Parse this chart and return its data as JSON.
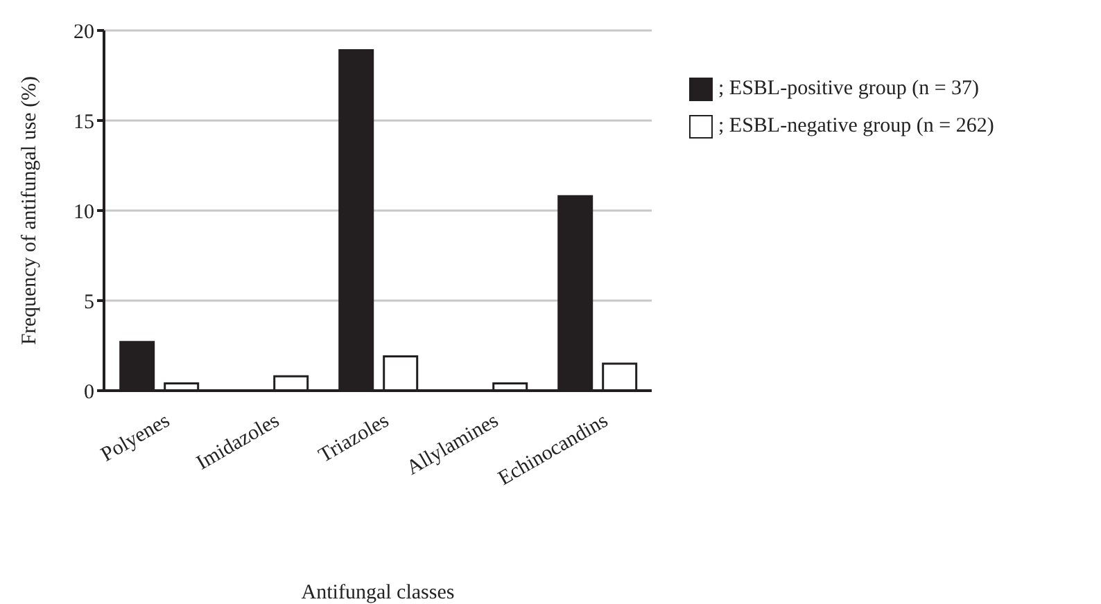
{
  "chart_data": {
    "type": "bar",
    "xlabel": "Antifungal classes",
    "ylabel": "Frequency of antifungal use (%)",
    "categories": [
      "Polyenes",
      "Imidazoles",
      "Triazoles",
      "Allylamines",
      "Echinocandins"
    ],
    "series": [
      {
        "name": "; ESBL-positive group (n = 37)",
        "color": "#231f20",
        "values": [
          2.7,
          0,
          18.9,
          0,
          10.8
        ]
      },
      {
        "name": "; ESBL-negative group (n = 262)",
        "color": "#ffffff",
        "values": [
          0.4,
          0.8,
          1.9,
          0.4,
          1.5
        ]
      }
    ],
    "ylim": [
      0,
      20
    ],
    "yticks": [
      0,
      5,
      10,
      15,
      20
    ],
    "grid": "y",
    "legend": "right"
  }
}
